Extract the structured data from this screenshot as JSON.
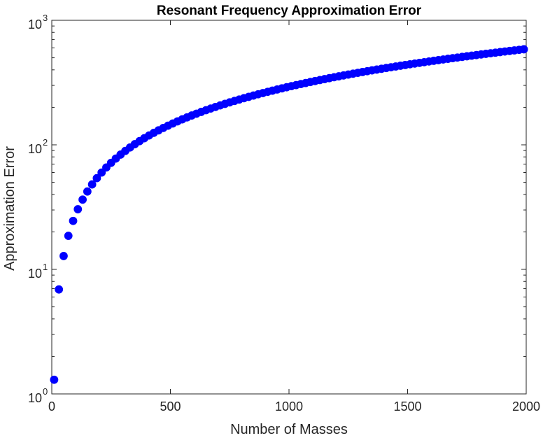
{
  "chart_data": {
    "type": "scatter",
    "title": "Resonant Frequency Approximation Error",
    "xlabel": "Number of Masses",
    "ylabel": "Approximation Error",
    "xlim": [
      0,
      2000
    ],
    "ylim": [
      1,
      1000
    ],
    "yscale": "log",
    "grid": false,
    "marker_color": "#0000ff",
    "x_ticks": [
      {
        "value": 0,
        "label": "0"
      },
      {
        "value": 500,
        "label": "500"
      },
      {
        "value": 1000,
        "label": "1000"
      },
      {
        "value": 1500,
        "label": "1500"
      },
      {
        "value": 2000,
        "label": "2000"
      }
    ],
    "y_ticks": [
      {
        "value": 1,
        "base": "10",
        "exp": "0"
      },
      {
        "value": 10,
        "base": "10",
        "exp": "1"
      },
      {
        "value": 100,
        "base": "10",
        "exp": "2"
      },
      {
        "value": 1000,
        "base": "10",
        "exp": "3"
      }
    ],
    "series": [
      {
        "x": [
          10,
          30,
          50,
          70,
          90,
          110,
          130,
          150,
          170,
          190,
          210,
          230,
          250,
          270,
          290,
          310,
          330,
          350,
          370,
          390,
          410,
          430,
          450,
          470,
          490,
          510,
          530,
          550,
          570,
          590,
          610,
          630,
          650,
          670,
          690,
          710,
          730,
          750,
          770,
          790,
          810,
          830,
          850,
          870,
          890,
          910,
          930,
          950,
          970,
          990,
          1010,
          1030,
          1050,
          1070,
          1090,
          1110,
          1130,
          1150,
          1170,
          1190,
          1210,
          1230,
          1250,
          1270,
          1290,
          1310,
          1330,
          1350,
          1370,
          1390,
          1410,
          1430,
          1450,
          1470,
          1490,
          1510,
          1530,
          1550,
          1570,
          1590,
          1610,
          1630,
          1650,
          1670,
          1690,
          1710,
          1730,
          1750,
          1770,
          1790,
          1810,
          1830,
          1850,
          1870,
          1890,
          1910,
          1930,
          1950,
          1970,
          1990
        ],
        "y": [
          1.3,
          6.9,
          12.8,
          18.6,
          24.5,
          30.4,
          36.3,
          42.2,
          48.1,
          54.0,
          59.9,
          65.8,
          71.7,
          77.6,
          83.5,
          89.4,
          95.3,
          101.2,
          107.1,
          113.0,
          118.9,
          124.8,
          130.7,
          136.6,
          142.5,
          148.4,
          154.3,
          160.2,
          166.1,
          172.0,
          177.9,
          183.8,
          189.7,
          195.6,
          201.5,
          207.4,
          213.3,
          219.2,
          225.1,
          231.0,
          236.9,
          242.8,
          248.7,
          254.6,
          260.5,
          266.4,
          272.3,
          278.2,
          284.1,
          290.0,
          295.9,
          301.8,
          307.7,
          313.6,
          319.5,
          325.4,
          331.3,
          337.2,
          343.1,
          349.0,
          354.9,
          360.8,
          366.7,
          372.6,
          378.5,
          384.4,
          390.3,
          396.2,
          402.1,
          408.0,
          413.9,
          419.8,
          425.7,
          431.6,
          437.5,
          443.4,
          449.3,
          455.2,
          461.1,
          467.0,
          472.9,
          478.8,
          484.7,
          490.6,
          496.5,
          502.4,
          508.3,
          514.2,
          520.1,
          526.0,
          531.9,
          537.8,
          543.7,
          549.6,
          555.5,
          561.4,
          567.3,
          573.2,
          579.1,
          585.0
        ]
      }
    ]
  }
}
